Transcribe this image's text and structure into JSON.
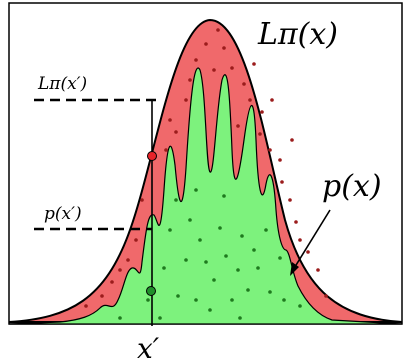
{
  "labels": {
    "envelope": "Lπ(x)",
    "target": "p(x)",
    "envelope_at_xprime": "Lπ(x′)",
    "target_at_xprime": "p(x′)",
    "xprime": "x′"
  },
  "colors": {
    "envelope_fill": "#f0696b",
    "target_fill": "#7df27d",
    "outline": "#000000",
    "rejected_marker": "#e8232a",
    "accepted_marker": "#1f8f2a",
    "dots_red_region": "#9b1c1c",
    "dots_green_region": "#1e7a1e"
  }
}
